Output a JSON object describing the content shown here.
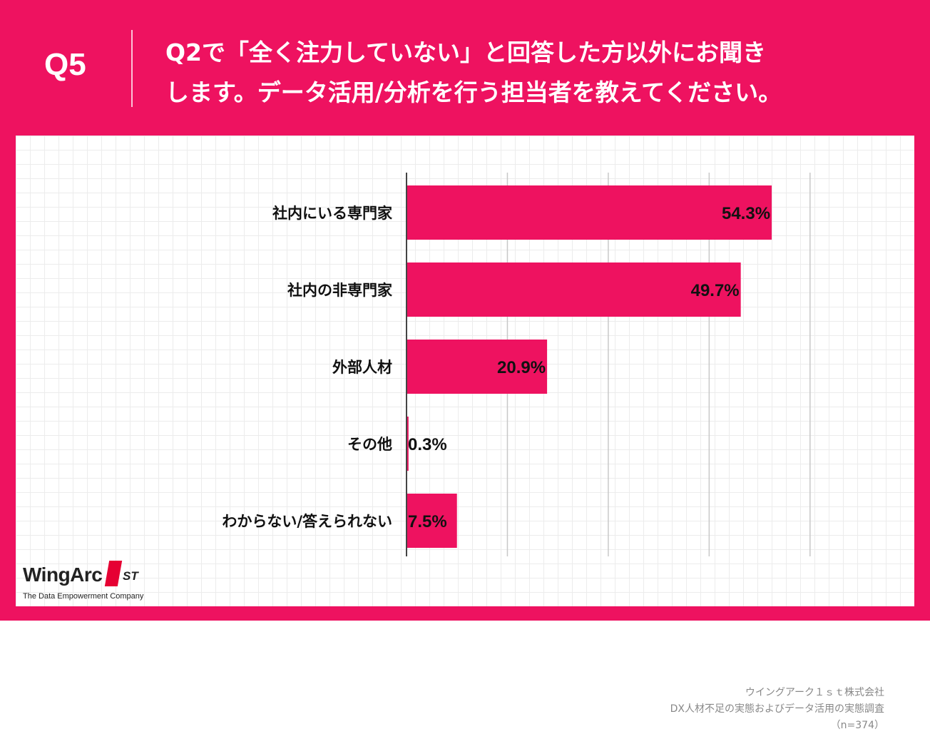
{
  "header": {
    "qnum": "Q5",
    "question": "Q2で「全く注力していない」と回答した方以外にお聞き\nします。データ活用/分析を行う担当者を教えてください。"
  },
  "chart_data": {
    "type": "bar",
    "orientation": "horizontal",
    "categories": [
      "社内にいる専門家",
      "社内の非専門家",
      "外部人材",
      "その他",
      "わからない/答えられない"
    ],
    "values": [
      54.3,
      49.7,
      20.9,
      0.3,
      7.5
    ],
    "value_labels": [
      "54.3%",
      "49.7%",
      "20.9%",
      "0.3%",
      "7.5%"
    ],
    "xlim": [
      0,
      60
    ],
    "grid": true,
    "bar_color": "#EE1260"
  },
  "logo": {
    "brand": "WingArc",
    "mark": "1",
    "suffix": "ST",
    "tagline": "The Data Empowerment Company"
  },
  "source": {
    "company": "ウイングアーク１ｓｔ株式会社",
    "survey": "DX人材不足の実態およびデータ活用の実態調査",
    "sample": "（n=374）"
  },
  "colors": {
    "brand_pink": "#EE1260",
    "logo_red": "#E60033"
  }
}
